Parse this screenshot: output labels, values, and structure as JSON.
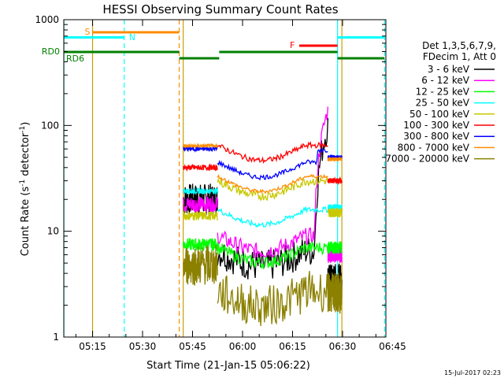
{
  "chart_data": {
    "type": "line",
    "title": "HESSI Observing Summary Count Rates",
    "xlabel": "Start Time (21-Jan-15 05:06:22)",
    "ylabel_main": "Count Rate (s",
    "ylabel_sup1": "-1",
    "ylabel_mid": " detector",
    "ylabel_sup2": "-1",
    "ylabel_end": ")",
    "yscale": "log",
    "ylim": [
      1,
      1000
    ],
    "xlim_min": [
      6.37,
      103.0
    ],
    "x_ticks": [
      {
        "m": 15,
        "label": "05:15"
      },
      {
        "m": 30,
        "label": "05:30"
      },
      {
        "m": 45,
        "label": "05:45"
      },
      {
        "m": 60,
        "label": "06:00"
      },
      {
        "m": 75,
        "label": "06:15"
      },
      {
        "m": 90,
        "label": "06:30"
      },
      {
        "m": 105,
        "label": "06:45"
      }
    ],
    "y_ticks": [
      {
        "v": 1,
        "label": "1"
      },
      {
        "v": 10,
        "label": "10"
      },
      {
        "v": 100,
        "label": "100"
      },
      {
        "v": 1000,
        "label": "1000"
      }
    ],
    "legend_header": [
      "Det 1,3,5,6,7,9,",
      "FDecim 1, Att 0"
    ],
    "series": [
      {
        "name": "3 - 6 keV",
        "color": "#000000"
      },
      {
        "name": "6 - 12 keV",
        "color": "#ff00ff"
      },
      {
        "name": "12 - 25 keV",
        "color": "#00ff00"
      },
      {
        "name": "25 - 50 keV",
        "color": "#00ffff"
      },
      {
        "name": "50 - 100 keV",
        "color": "#c8c800"
      },
      {
        "name": "100 - 300 keV",
        "color": "#ff0000"
      },
      {
        "name": "300 - 800 keV",
        "color": "#0000ff"
      },
      {
        "name": "800 - 7000 keV",
        "color": "#ff8c00"
      },
      {
        "name": "7000 - 20000 keV",
        "color": "#8b8000"
      }
    ],
    "segments": [
      {
        "x0": 42.2,
        "x1": 52.5,
        "base": {
          "3 - 6 keV": 20,
          "6 - 12 keV": 18,
          "12 - 25 keV": 7.5,
          "25 - 50 keV": 24,
          "50 - 100 keV": 14,
          "100 - 300 keV": 40,
          "300 - 800 keV": 60,
          "800 - 7000 keV": 64,
          "7000 - 20000 keV": 4.8
        }
      },
      {
        "x0": 52.5,
        "x1": 85.6,
        "base": {
          "3 - 6 keV": 6.5,
          "6 - 12 keV": 9,
          "12 - 25 keV": 7,
          "25 - 50 keV": 16,
          "50 - 100 keV": 30,
          "100 - 300 keV": 65,
          "300 - 800 keV": 45,
          "800 - 7000 keV": 33,
          "7000 - 20000 keV": 2.7
        }
      },
      {
        "x0": 85.6,
        "x1": 89.8,
        "base": {
          "3 - 6 keV": 3.5,
          "6 - 12 keV": 6,
          "12 - 25 keV": 7,
          "25 - 50 keV": 17,
          "50 - 100 keV": 15,
          "100 - 300 keV": 30,
          "300 - 800 keV": 50,
          "800 - 7000 keV": 48,
          "7000 - 20000 keV": 2.6
        }
      }
    ],
    "flags": {
      "S": {
        "label": "S",
        "x0": 15.0,
        "x1": 41.0,
        "color": "#ff8c00"
      },
      "N": {
        "label": "N",
        "x0": 6.4,
        "x1": 24.5,
        "color": "#00ffff"
      },
      "N2": {
        "x0": 88.5,
        "x1": 102.6,
        "color": "#00ffff"
      },
      "F": {
        "label": "F",
        "x0": 77.0,
        "x1": 88.5,
        "color": "#ff0000"
      },
      "RD0": {
        "label": "RD0",
        "segs": [
          [
            6.4,
            41.0
          ],
          [
            53.0,
            88.5
          ],
          [
            88.5,
            102.6
          ]
        ],
        "color": "#008000"
      },
      "RD6": {
        "label": "RD6",
        "segs": [
          [
            41.0,
            53.0
          ],
          [
            88.5,
            102.6
          ]
        ],
        "color": "#008000"
      }
    },
    "vlines": [
      {
        "x": 6.4,
        "color": "#00ffff",
        "dash": false
      },
      {
        "x": 15.0,
        "color": "#c8a000",
        "dash": false
      },
      {
        "x": 24.5,
        "color": "#00ffff",
        "dash": true
      },
      {
        "x": 41.0,
        "color": "#ff8c00",
        "dash": true
      },
      {
        "x": 42.2,
        "color": "#c8a000",
        "dash": false
      },
      {
        "x": 88.5,
        "color": "#00ffff",
        "dash": false
      },
      {
        "x": 89.8,
        "color": "#c8a000",
        "dash": false
      },
      {
        "x": 102.6,
        "color": "#00ffff",
        "dash": true
      }
    ],
    "footer": "15-Jul-2017 02:23"
  }
}
